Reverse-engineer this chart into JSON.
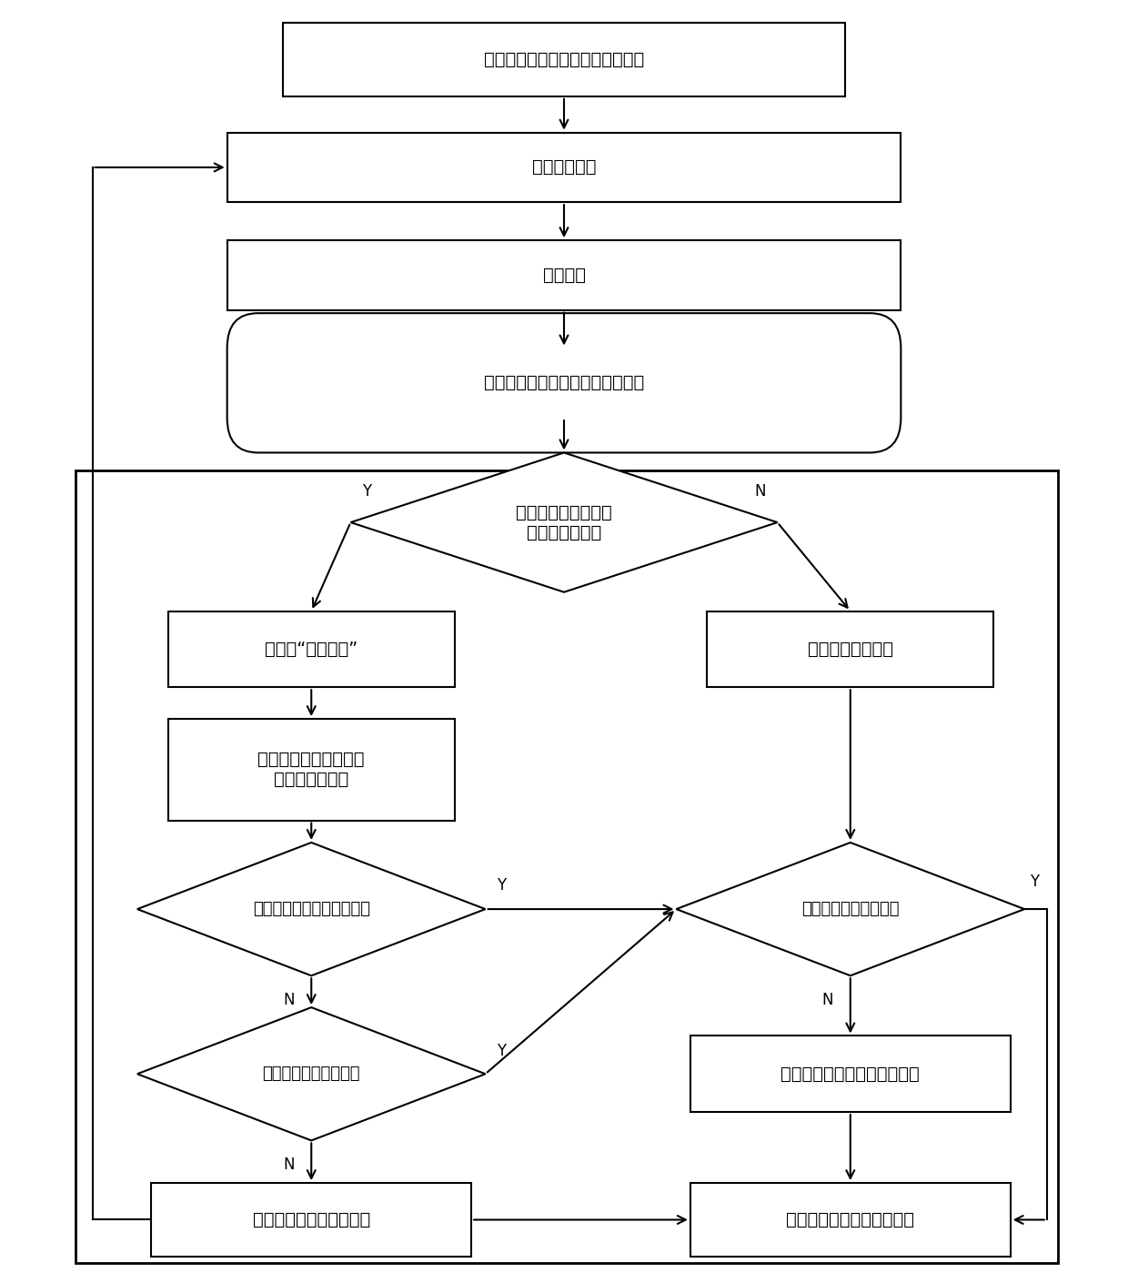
{
  "bg_color": "#ffffff",
  "line_color": "#000000",
  "text_color": "#000000",
  "font_size": 14,
  "small_font_size": 12,
  "figsize": [
    12.4,
    13.99
  ],
  "dpi": 100,
  "mark_crack_text": "标记为“计算裂隙”",
  "node1_text": "建立煌体几何模型并设定计算参数",
  "node2_text": "设定边界条件",
  "node3_text": "剖分网格",
  "node4_text": "进行渗流模拟并计算煌体应力分布",
  "node5_text": "是否存在应力值大于\n抗拉强度的网格",
  "node6_text": "终止裂隙发育算法",
  "node7_text": "使用生死单元方法在模\n型中剖除该网格",
  "node8_text": "计算裂隙是否抑达煌体表面",
  "node9_text": "是否达到预设计算时间",
  "node10_text": "是否达到预设计算时间",
  "node11_text": "单独进行渗流模拟至预设时间",
  "node12_text": "存储该时间节点模拟结果",
  "node13_text": "整合所有时间点结果并输出"
}
